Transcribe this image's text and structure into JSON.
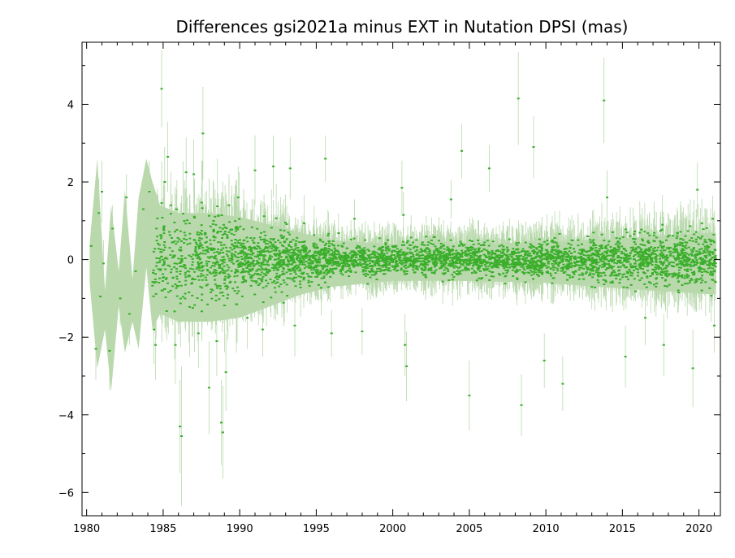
{
  "chart_data": {
    "type": "scatter",
    "title": "Differences gsi2021a minus EXT in Nutation DPSI (mas)",
    "xlabel": "",
    "ylabel": "",
    "xlim": [
      1979.7,
      2021.4
    ],
    "ylim": [
      -6.6,
      5.6
    ],
    "x_ticks": [
      1980,
      1985,
      1990,
      1995,
      2000,
      2005,
      2010,
      2015,
      2020
    ],
    "y_ticks": [
      -6,
      -4,
      -2,
      0,
      2,
      4
    ],
    "x_minor_step": 1,
    "y_minor_step": 1,
    "grid": false,
    "colors": {
      "points": "#3aae2a",
      "error_bars": "#b9d9ad",
      "axes": "#000000"
    },
    "envelope": [
      {
        "x": 1980.2,
        "y": 0.4
      },
      {
        "x": 1980.7,
        "y": 2.6
      },
      {
        "x": 1981.2,
        "y": -0.8
      },
      {
        "x": 1981.6,
        "y": 1.4
      },
      {
        "x": 1982.1,
        "y": -0.3
      },
      {
        "x": 1982.5,
        "y": 1.8
      },
      {
        "x": 1983.0,
        "y": -0.5
      },
      {
        "x": 1983.4,
        "y": 1.6
      },
      {
        "x": 1983.9,
        "y": 2.6
      },
      {
        "x": 1984.3,
        "y": 2.0
      },
      {
        "x": 1984.8,
        "y": 1.4
      },
      {
        "x": 1986.0,
        "y": 1.2
      },
      {
        "x": 1988.0,
        "y": 1.2
      },
      {
        "x": 1990.0,
        "y": 1.1
      },
      {
        "x": 1992.0,
        "y": 0.9
      },
      {
        "x": 1994.0,
        "y": 0.7
      },
      {
        "x": 1996.0,
        "y": 0.5
      },
      {
        "x": 2000.0,
        "y": 0.4
      },
      {
        "x": 2005.0,
        "y": 0.4
      },
      {
        "x": 2010.0,
        "y": 0.45
      },
      {
        "x": 2015.0,
        "y": 0.55
      },
      {
        "x": 2021.0,
        "y": 0.7
      },
      {
        "x": 2021.0,
        "y": -0.9
      },
      {
        "x": 2015.0,
        "y": -0.75
      },
      {
        "x": 2010.0,
        "y": -0.6
      },
      {
        "x": 2005.0,
        "y": -0.55
      },
      {
        "x": 2000.0,
        "y": -0.55
      },
      {
        "x": 1996.0,
        "y": -0.7
      },
      {
        "x": 1994.0,
        "y": -0.9
      },
      {
        "x": 1992.0,
        "y": -1.2
      },
      {
        "x": 1990.0,
        "y": -1.5
      },
      {
        "x": 1988.0,
        "y": -1.6
      },
      {
        "x": 1986.0,
        "y": -1.6
      },
      {
        "x": 1984.8,
        "y": -1.4
      },
      {
        "x": 1984.3,
        "y": -1.8
      },
      {
        "x": 1983.9,
        "y": -0.2
      },
      {
        "x": 1983.4,
        "y": -2.3
      },
      {
        "x": 1983.0,
        "y": -1.6
      },
      {
        "x": 1982.5,
        "y": -2.4
      },
      {
        "x": 1982.1,
        "y": -1.2
      },
      {
        "x": 1981.6,
        "y": -3.4
      },
      {
        "x": 1981.2,
        "y": -1.8
      },
      {
        "x": 1980.7,
        "y": -2.8
      },
      {
        "x": 1980.2,
        "y": -0.6
      }
    ],
    "points": [
      {
        "x": 1980.3,
        "y": 0.35,
        "err": 0.5
      },
      {
        "x": 1980.6,
        "y": -2.3,
        "err": 0.8
      },
      {
        "x": 1980.8,
        "y": 1.2,
        "err": 0.9
      },
      {
        "x": 1980.9,
        "y": -0.95,
        "err": 0.8
      },
      {
        "x": 1981.0,
        "y": 1.75,
        "err": 0.8
      },
      {
        "x": 1981.1,
        "y": -0.1,
        "err": 0.6
      },
      {
        "x": 1981.5,
        "y": -2.35,
        "err": 1.0
      },
      {
        "x": 1981.7,
        "y": 0.8,
        "err": 0.6
      },
      {
        "x": 1982.2,
        "y": -1.0,
        "err": 0.7
      },
      {
        "x": 1982.6,
        "y": 1.6,
        "err": 0.6
      },
      {
        "x": 1982.8,
        "y": -1.4,
        "err": 0.8
      },
      {
        "x": 1983.2,
        "y": -0.3,
        "err": 0.6
      },
      {
        "x": 1983.7,
        "y": 1.3,
        "err": 0.7
      },
      {
        "x": 1984.1,
        "y": 1.75,
        "err": 0.8
      },
      {
        "x": 1984.4,
        "y": -1.8,
        "err": 0.9
      },
      {
        "x": 1984.5,
        "y": -2.2,
        "err": 0.9
      },
      {
        "x": 1984.9,
        "y": 4.4,
        "err": 1.0
      },
      {
        "x": 1985.1,
        "y": 2.0,
        "err": 0.9
      },
      {
        "x": 1985.3,
        "y": 2.65,
        "err": 0.9
      },
      {
        "x": 1985.5,
        "y": -0.8,
        "err": 0.8
      },
      {
        "x": 1985.8,
        "y": -2.2,
        "err": 1.0
      },
      {
        "x": 1986.1,
        "y": -4.3,
        "err": 1.2
      },
      {
        "x": 1986.2,
        "y": -4.55,
        "err": 1.8
      },
      {
        "x": 1986.5,
        "y": 2.25,
        "err": 0.9
      },
      {
        "x": 1987.0,
        "y": 2.2,
        "err": 0.9
      },
      {
        "x": 1987.3,
        "y": -1.9,
        "err": 0.9
      },
      {
        "x": 1987.6,
        "y": 3.25,
        "err": 1.2
      },
      {
        "x": 1988.0,
        "y": -3.3,
        "err": 1.2
      },
      {
        "x": 1988.5,
        "y": -2.1,
        "err": 0.9
      },
      {
        "x": 1988.8,
        "y": -4.2,
        "err": 1.1
      },
      {
        "x": 1988.9,
        "y": -4.45,
        "err": 1.2
      },
      {
        "x": 1989.1,
        "y": -2.9,
        "err": 1.0
      },
      {
        "x": 1989.3,
        "y": 1.4,
        "err": 0.8
      },
      {
        "x": 1989.9,
        "y": 1.6,
        "err": 0.8
      },
      {
        "x": 1990.5,
        "y": -1.5,
        "err": 0.8
      },
      {
        "x": 1991.0,
        "y": 2.3,
        "err": 0.9
      },
      {
        "x": 1991.5,
        "y": -1.8,
        "err": 0.7
      },
      {
        "x": 1992.2,
        "y": 2.4,
        "err": 0.8
      },
      {
        "x": 1993.3,
        "y": 2.35,
        "err": 0.8
      },
      {
        "x": 1993.6,
        "y": -1.7,
        "err": 0.8
      },
      {
        "x": 1995.6,
        "y": 2.6,
        "err": 0.6
      },
      {
        "x": 1996.0,
        "y": -1.9,
        "err": 0.6
      },
      {
        "x": 1997.5,
        "y": 1.05,
        "err": 0.5
      },
      {
        "x": 1998.0,
        "y": -1.85,
        "err": 0.6
      },
      {
        "x": 2000.6,
        "y": 1.85,
        "err": 0.7
      },
      {
        "x": 2000.7,
        "y": 1.15,
        "err": 0.6
      },
      {
        "x": 2000.8,
        "y": -2.2,
        "err": 0.8
      },
      {
        "x": 2000.9,
        "y": -2.75,
        "err": 0.9
      },
      {
        "x": 2003.8,
        "y": 1.55,
        "err": 0.5
      },
      {
        "x": 2004.5,
        "y": 2.8,
        "err": 0.7
      },
      {
        "x": 2005.0,
        "y": -3.5,
        "err": 0.9
      },
      {
        "x": 2006.3,
        "y": 2.35,
        "err": 0.6
      },
      {
        "x": 2008.2,
        "y": 4.15,
        "err": 1.2
      },
      {
        "x": 2008.4,
        "y": -3.75,
        "err": 0.8
      },
      {
        "x": 2009.2,
        "y": 2.9,
        "err": 0.8
      },
      {
        "x": 2009.9,
        "y": -2.6,
        "err": 0.7
      },
      {
        "x": 2011.1,
        "y": -3.2,
        "err": 0.7
      },
      {
        "x": 2013.8,
        "y": 4.1,
        "err": 1.1
      },
      {
        "x": 2014.0,
        "y": 1.6,
        "err": 0.7
      },
      {
        "x": 2015.2,
        "y": -2.5,
        "err": 0.8
      },
      {
        "x": 2016.5,
        "y": -1.5,
        "err": 0.7
      },
      {
        "x": 2017.7,
        "y": -2.2,
        "err": 0.8
      },
      {
        "x": 2019.6,
        "y": -2.8,
        "err": 1.0
      },
      {
        "x": 2019.9,
        "y": 1.8,
        "err": 0.7
      },
      {
        "x": 2020.9,
        "y": 1.05,
        "err": 0.6
      },
      {
        "x": 2021.0,
        "y": -1.7,
        "err": 0.7
      }
    ],
    "dense_band": [
      {
        "from": 1984.3,
        "to": 1987.0,
        "sigma": 0.55,
        "err": 0.9,
        "n": 190
      },
      {
        "from": 1987.0,
        "to": 1990.0,
        "sigma": 0.55,
        "err": 0.9,
        "n": 320
      },
      {
        "from": 1990.0,
        "to": 1993.0,
        "sigma": 0.4,
        "err": 0.7,
        "n": 380
      },
      {
        "from": 1993.0,
        "to": 1996.0,
        "sigma": 0.28,
        "err": 0.5,
        "n": 380
      },
      {
        "from": 1996.0,
        "to": 2002.0,
        "sigma": 0.2,
        "err": 0.45,
        "n": 650
      },
      {
        "from": 2002.0,
        "to": 2008.0,
        "sigma": 0.2,
        "err": 0.45,
        "n": 650
      },
      {
        "from": 2008.0,
        "to": 2013.0,
        "sigma": 0.22,
        "err": 0.5,
        "n": 560
      },
      {
        "from": 2013.0,
        "to": 2017.0,
        "sigma": 0.28,
        "err": 0.55,
        "n": 470
      },
      {
        "from": 2017.0,
        "to": 2021.1,
        "sigma": 0.32,
        "err": 0.6,
        "n": 470
      }
    ]
  }
}
